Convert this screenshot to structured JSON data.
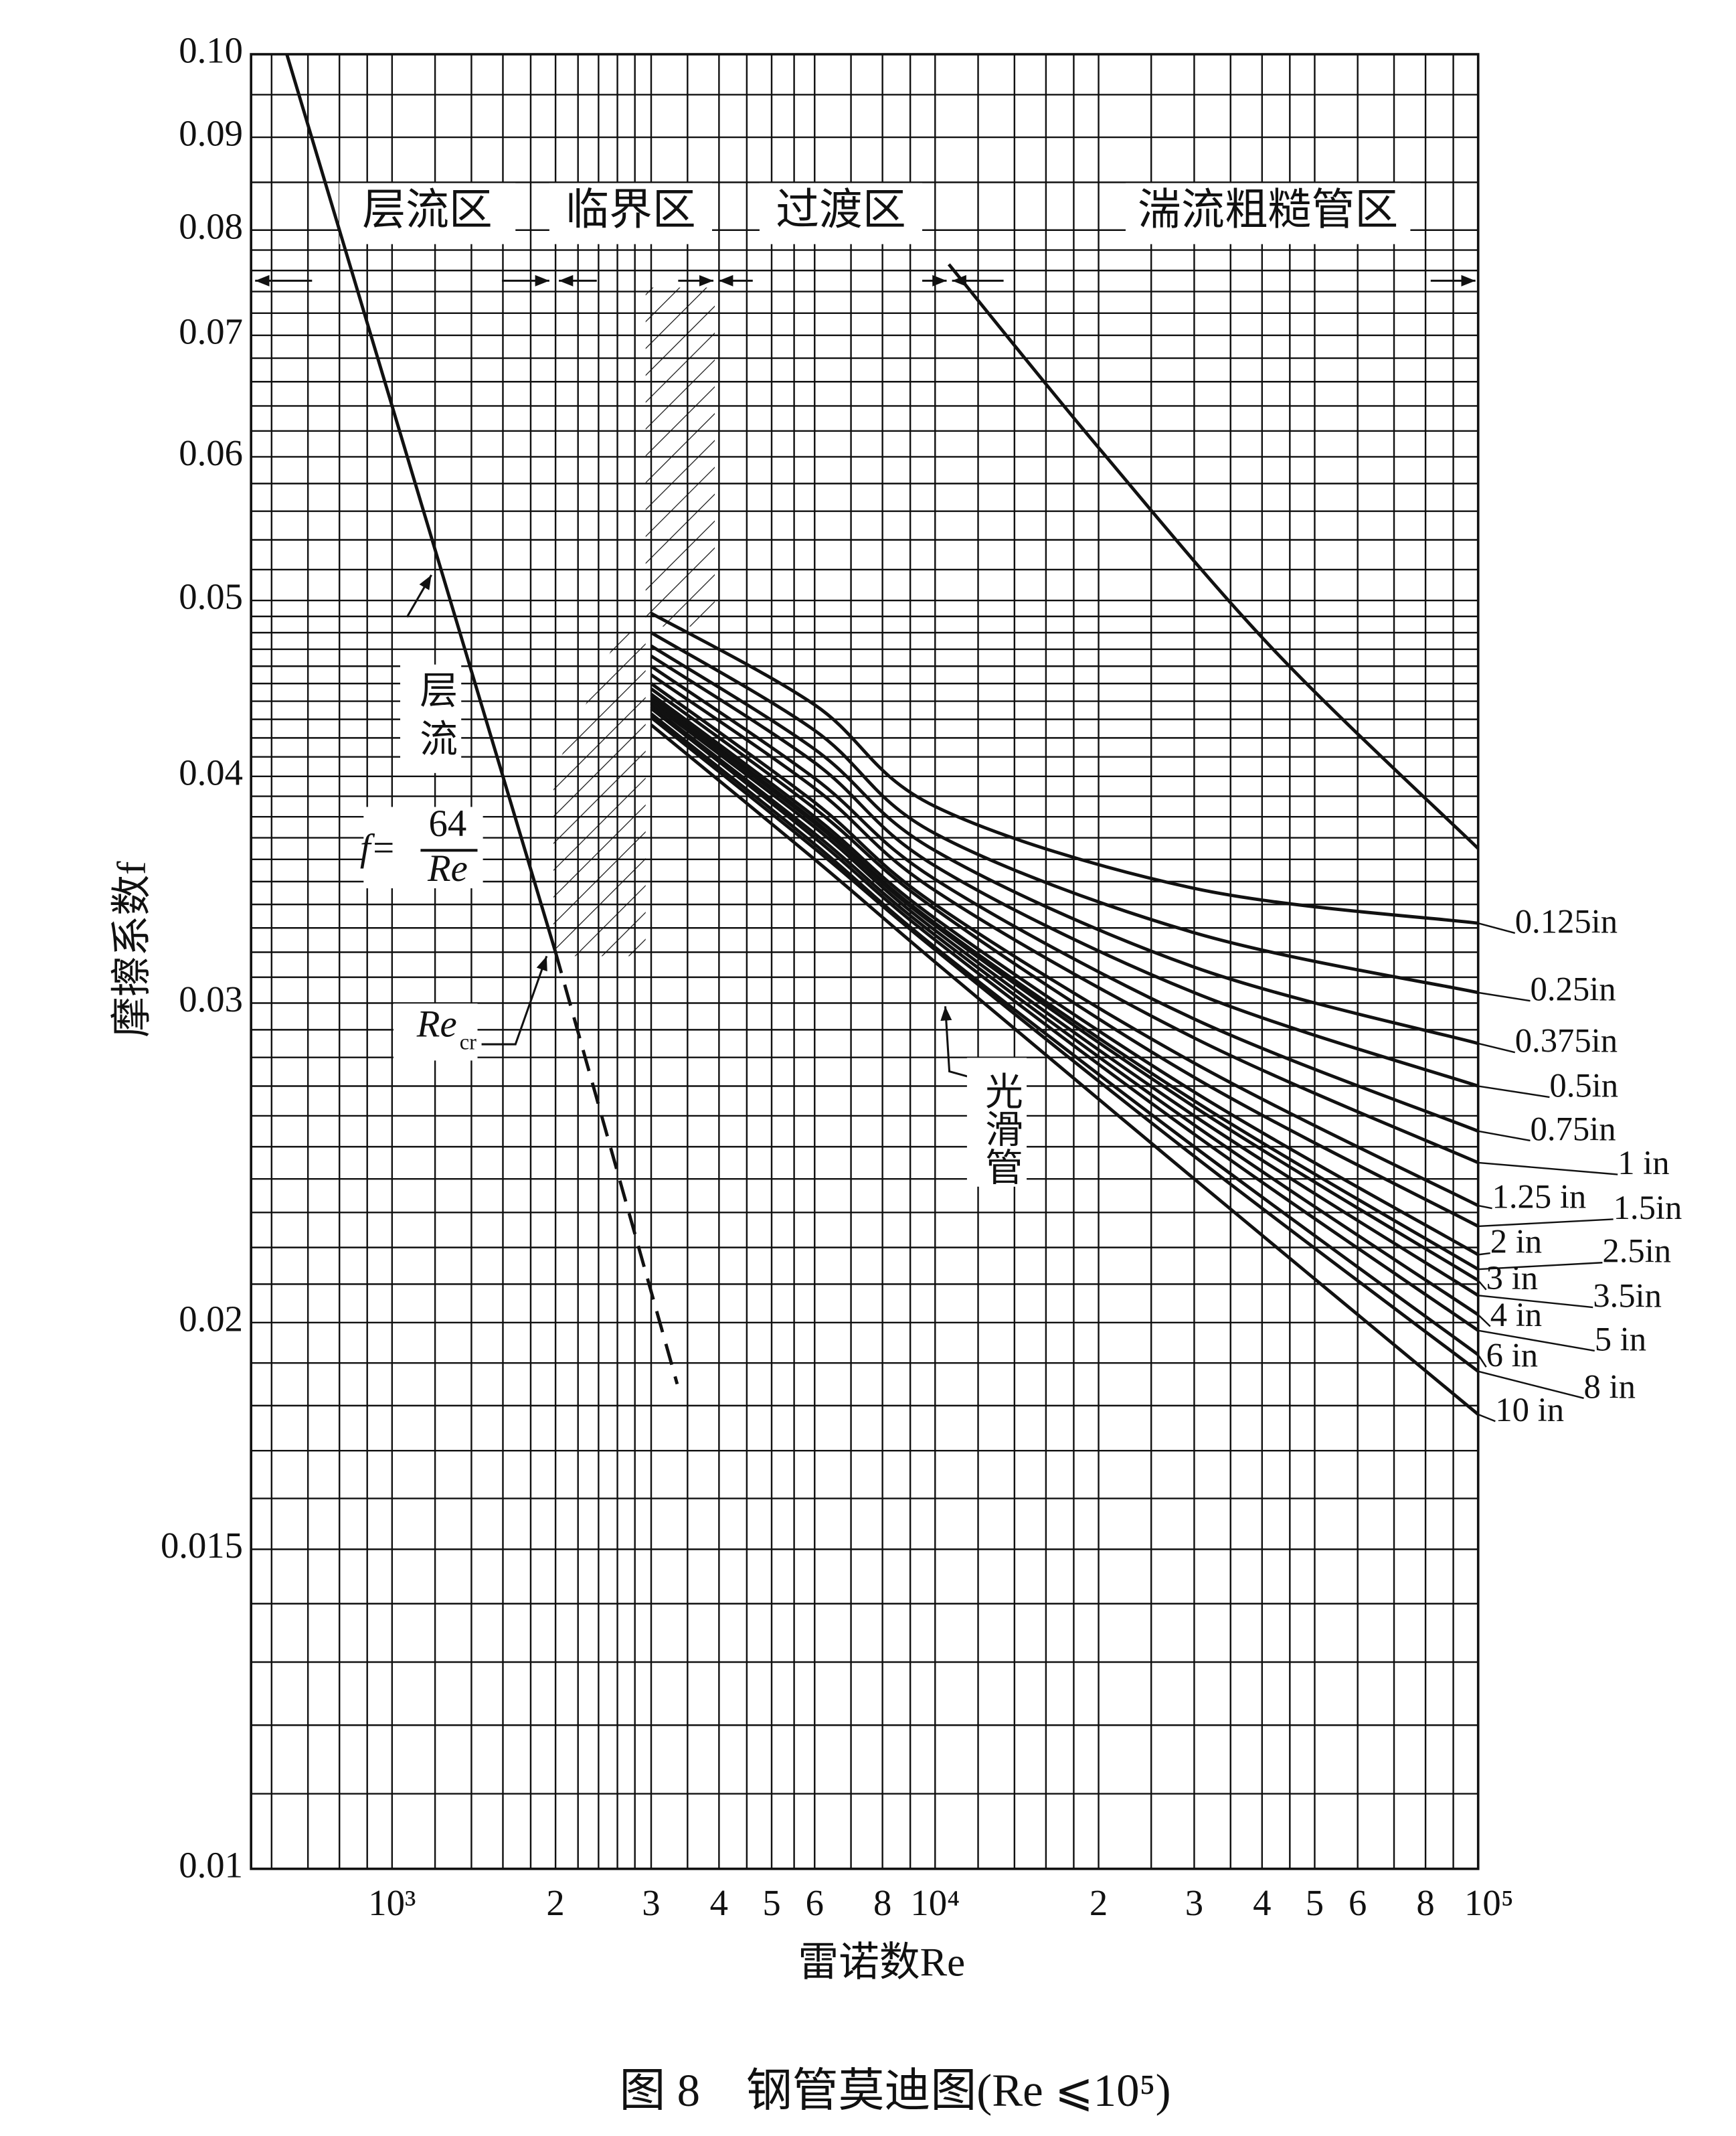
{
  "chart_data": {
    "type": "line",
    "xlabel": "雷诺数Re",
    "ylabel": "摩擦系数f",
    "caption": "图 8　钢管莫迪图(Re ⩽10⁵)",
    "xscale": "log",
    "yscale": "log",
    "grid": true,
    "color": "#111111",
    "xlim": [
      550,
      100000
    ],
    "ylim": [
      0.01,
      0.1
    ],
    "xticks": [
      {
        "value": 1000,
        "label": "10³"
      },
      {
        "value": 2000,
        "label": "2"
      },
      {
        "value": 3000,
        "label": "3"
      },
      {
        "value": 4000,
        "label": "4"
      },
      {
        "value": 5000,
        "label": "5"
      },
      {
        "value": 6000,
        "label": "6"
      },
      {
        "value": 8000,
        "label": "8"
      },
      {
        "value": 10000,
        "label": "10⁴"
      },
      {
        "value": 20000,
        "label": "2"
      },
      {
        "value": 30000,
        "label": "3"
      },
      {
        "value": 40000,
        "label": "4"
      },
      {
        "value": 50000,
        "label": "5"
      },
      {
        "value": 60000,
        "label": "6"
      },
      {
        "value": 80000,
        "label": "8"
      },
      {
        "value": 100000,
        "label": "10⁵"
      }
    ],
    "yticks": [
      0.01,
      0.015,
      0.02,
      0.03,
      0.04,
      0.05,
      0.06,
      0.07,
      0.08,
      0.09,
      {
        "value": 0.1,
        "label": "0.10"
      }
    ],
    "x_minor_grid": [
      600,
      700,
      800,
      900,
      1200,
      1400,
      1600,
      1800,
      2200,
      2400,
      2600,
      2800,
      3500,
      4500,
      5500,
      7000,
      9000,
      12000,
      14000,
      16000,
      18000,
      25000,
      35000,
      45000,
      70000,
      90000
    ],
    "y_minor_grid": [
      0.011,
      0.012,
      0.013,
      0.014,
      0.016,
      0.017,
      0.018,
      0.019,
      0.021,
      0.022,
      0.023,
      0.024,
      0.025,
      0.026,
      0.027,
      0.028,
      0.029,
      0.031,
      0.032,
      0.033,
      0.034,
      0.035,
      0.036,
      0.037,
      0.038,
      0.039,
      0.041,
      0.042,
      0.043,
      0.044,
      0.045,
      0.046,
      0.047,
      0.048,
      0.049,
      0.052,
      0.054,
      0.056,
      0.058,
      0.062,
      0.064,
      0.066,
      0.068,
      0.072,
      0.074,
      0.076,
      0.078,
      0.085,
      0.095
    ],
    "regions": [
      "层流区",
      "临界区",
      "过渡区",
      "湍流粗糙管区"
    ],
    "annotations": {
      "laminar": "层流",
      "formula_lhs": "f=",
      "formula_numerator": "64",
      "formula_denominator": "Re",
      "re_cr": "Re",
      "re_cr_sub": "cr",
      "smooth": "光滑管"
    },
    "series": [
      {
        "x": [
          640,
          2000
        ],
        "values": [
          0.1,
          0.032
        ],
        "style": "solid"
      },
      {
        "x": [
          2000,
          3350
        ],
        "values": [
          0.032,
          0.0185
        ],
        "style": "dashed"
      },
      {
        "x": [
          10600,
          20000,
          42200,
          100000
        ],
        "values": [
          0.0766,
          0.0607,
          0.0469,
          0.0365
        ],
        "style": "solid"
      },
      {
        "name": "0.125in",
        "x": [
          3000,
          6000,
          10000,
          30000,
          100000
        ],
        "values": [
          0.0492,
          0.0438,
          0.0385,
          0.0347,
          0.0332
        ]
      },
      {
        "name": "0.25in",
        "x": [
          3000,
          6000,
          10000,
          30000,
          100000
        ],
        "values": [
          0.048,
          0.0424,
          0.0372,
          0.0328,
          0.0304
        ]
      },
      {
        "name": "0.375in",
        "x": [
          3000,
          6000,
          10000,
          30000,
          100000
        ],
        "values": [
          0.0472,
          0.0414,
          0.0364,
          0.0314,
          0.0285
        ]
      },
      {
        "name": "0.5in",
        "x": [
          3000,
          6000,
          10000,
          30000,
          100000
        ],
        "values": [
          0.0466,
          0.0407,
          0.0357,
          0.0304,
          0.027
        ]
      },
      {
        "name": "0.75in",
        "x": [
          3000,
          6000,
          10000,
          30000,
          100000
        ],
        "values": [
          0.046,
          0.0399,
          0.0351,
          0.0294,
          0.0255
        ]
      },
      {
        "name": "1 in",
        "x": [
          3000,
          6000,
          10000,
          30000,
          100000
        ],
        "values": [
          0.0455,
          0.0394,
          0.0346,
          0.0287,
          0.0245
        ]
      },
      {
        "name": "1.25 in",
        "x": [
          3000,
          6000,
          10000,
          30000,
          100000
        ],
        "values": [
          0.045,
          0.0387,
          0.034,
          0.0278,
          0.0232
        ]
      },
      {
        "name": "1.5in",
        "x": [
          3000,
          6000,
          10000,
          30000,
          100000
        ],
        "values": [
          0.0447,
          0.0384,
          0.0338,
          0.0273,
          0.0226
        ]
      },
      {
        "name": "2 in",
        "x": [
          3000,
          6000,
          10000,
          30000,
          100000
        ],
        "values": [
          0.0444,
          0.038,
          0.0334,
          0.0268,
          0.0218
        ]
      },
      {
        "name": "2.5in",
        "x": [
          3000,
          6000,
          10000,
          30000,
          100000
        ],
        "values": [
          0.0442,
          0.0378,
          0.0332,
          0.0265,
          0.0214
        ]
      },
      {
        "name": "3 in",
        "x": [
          3000,
          6000,
          10000,
          30000,
          100000
        ],
        "values": [
          0.0441,
          0.0377,
          0.0331,
          0.0263,
          0.0211
        ]
      },
      {
        "name": "3.5in",
        "x": [
          3000,
          6000,
          10000,
          30000,
          100000
        ],
        "values": [
          0.0439,
          0.0375,
          0.0329,
          0.026,
          0.0207
        ]
      },
      {
        "name": "4 in",
        "x": [
          3000,
          6000,
          10000,
          30000,
          100000
        ],
        "values": [
          0.0437,
          0.0372,
          0.0327,
          0.0257,
          0.0202
        ]
      },
      {
        "name": "5 in",
        "x": [
          3000,
          6000,
          10000,
          30000,
          100000
        ],
        "values": [
          0.0436,
          0.037,
          0.0325,
          0.0254,
          0.0198
        ]
      },
      {
        "name": "6 in",
        "x": [
          3000,
          6000,
          10000,
          30000,
          100000
        ],
        "values": [
          0.0433,
          0.0367,
          0.0322,
          0.025,
          0.0192
        ]
      },
      {
        "name": "8 in",
        "x": [
          3000,
          6000,
          10000,
          30000,
          100000
        ],
        "values": [
          0.0431,
          0.0365,
          0.0321,
          0.0247,
          0.0188
        ]
      },
      {
        "name": "10 in",
        "x": [
          3000,
          6000,
          10000,
          30000,
          100000
        ],
        "values": [
          0.0427,
          0.036,
          0.0316,
          0.024,
          0.0178
        ]
      }
    ]
  }
}
